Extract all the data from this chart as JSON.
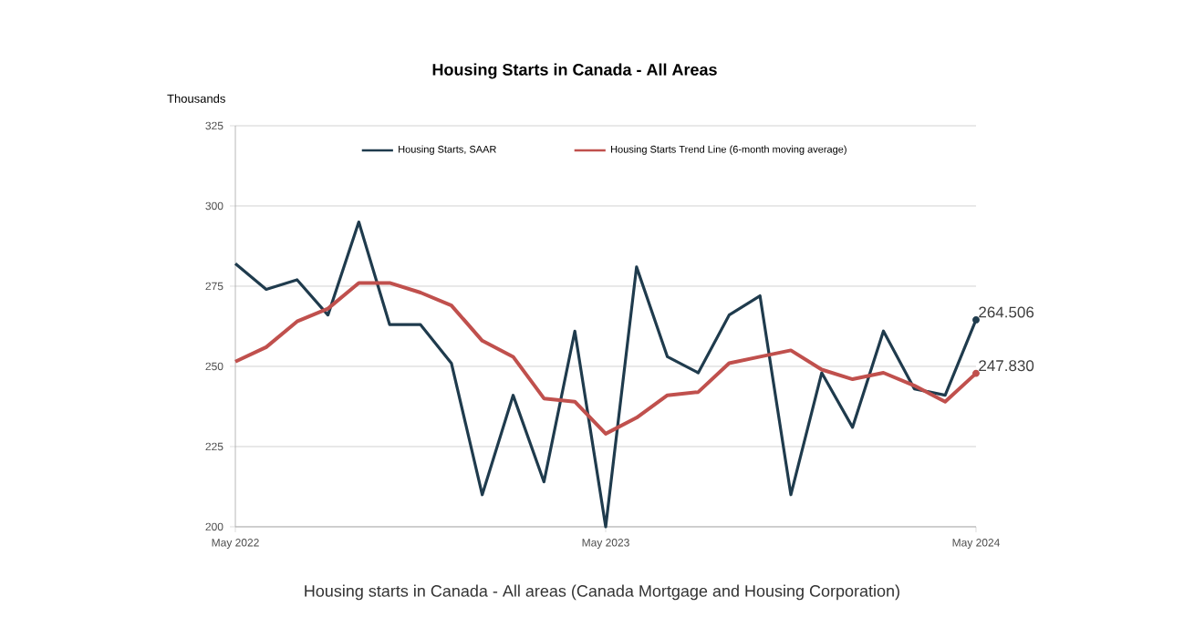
{
  "chart_data": {
    "type": "line",
    "title": "Housing Starts in Canada - All Areas",
    "ylabel": "Thousands",
    "categories": [
      "May 2022",
      null,
      null,
      null,
      null,
      null,
      null,
      null,
      null,
      null,
      null,
      null,
      "May 2023",
      null,
      null,
      null,
      null,
      null,
      null,
      null,
      null,
      null,
      null,
      null,
      "May 2024"
    ],
    "series": [
      {
        "name": "Housing Starts, SAAR",
        "color": "#1f3b4d",
        "values": [
          282,
          274,
          277,
          266,
          295,
          263,
          263,
          251,
          210,
          241,
          214,
          261,
          200,
          281,
          253,
          248,
          266,
          272,
          210,
          248,
          231,
          261,
          243,
          241,
          264.506
        ],
        "value_labels": [
          null,
          null,
          null,
          null,
          null,
          null,
          null,
          null,
          null,
          null,
          null,
          null,
          null,
          null,
          null,
          null,
          null,
          null,
          null,
          null,
          null,
          null,
          null,
          null,
          "264.506"
        ]
      },
      {
        "name": "Housing Starts Trend Line (6-month moving average)",
        "color": "#c0504d",
        "values": [
          251.5,
          256,
          264,
          268,
          276,
          276,
          273,
          269,
          258,
          253,
          240,
          239,
          229,
          234,
          241,
          242,
          251,
          253,
          255,
          249,
          246,
          248,
          244,
          239,
          247.83
        ],
        "value_labels": [
          null,
          null,
          null,
          null,
          null,
          null,
          null,
          null,
          null,
          null,
          null,
          null,
          null,
          null,
          null,
          null,
          null,
          null,
          null,
          null,
          null,
          null,
          null,
          null,
          "247.830"
        ]
      }
    ],
    "ylim": [
      200,
      325
    ],
    "yticks": [
      200,
      225,
      250,
      275,
      300,
      325
    ],
    "grid": "y",
    "legend": "top",
    "annotations": [
      "Housing starts in Canada - All areas (Canada Mortgage and Housing Corporation)"
    ]
  }
}
